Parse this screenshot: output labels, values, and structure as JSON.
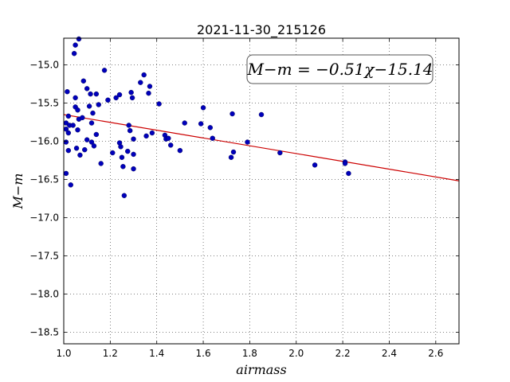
{
  "chart_data": {
    "type": "scatter",
    "title": "2021-11-30_215126",
    "xlabel": "airmass",
    "ylabel": "M−m",
    "xlim": [
      1.0,
      2.7
    ],
    "ylim": [
      -18.65,
      -14.65
    ],
    "xticks": [
      1.0,
      1.2,
      1.4,
      1.6,
      1.8,
      2.0,
      2.2,
      2.4,
      2.6
    ],
    "xtick_labels": [
      "1.0",
      "1.2",
      "1.4",
      "1.6",
      "1.8",
      "2.0",
      "2.2",
      "2.4",
      "2.6"
    ],
    "yticks": [
      -15.0,
      -15.5,
      -16.0,
      -16.5,
      -17.0,
      -17.5,
      -18.0,
      -18.5
    ],
    "ytick_labels": [
      "−15.0",
      "−15.5",
      "−16.0",
      "−16.5",
      "−17.0",
      "−17.5",
      "−18.0",
      "−18.5"
    ],
    "grid": true,
    "annotation": "M−m = −0.51χ−15.14",
    "fit": {
      "slope": -0.51,
      "intercept": -15.14,
      "color": "#cc0000"
    },
    "point_color": "#0000bb",
    "points": [
      [
        1.01,
        -16.42
      ],
      [
        1.01,
        -16.01
      ],
      [
        1.01,
        -15.84
      ],
      [
        1.01,
        -15.76
      ],
      [
        1.015,
        -15.35
      ],
      [
        1.02,
        -15.67
      ],
      [
        1.02,
        -15.89
      ],
      [
        1.02,
        -16.12
      ],
      [
        1.025,
        -15.79
      ],
      [
        1.03,
        -16.57
      ],
      [
        1.04,
        -15.79
      ],
      [
        1.045,
        -14.85
      ],
      [
        1.05,
        -14.74
      ],
      [
        1.05,
        -15.55
      ],
      [
        1.05,
        -15.43
      ],
      [
        1.055,
        -16.09
      ],
      [
        1.06,
        -15.59
      ],
      [
        1.06,
        -15.85
      ],
      [
        1.065,
        -14.66
      ],
      [
        1.065,
        -15.71
      ],
      [
        1.07,
        -16.18
      ],
      [
        1.08,
        -15.69
      ],
      [
        1.085,
        -15.21
      ],
      [
        1.09,
        -16.11
      ],
      [
        1.1,
        -15.31
      ],
      [
        1.1,
        -15.98
      ],
      [
        1.11,
        -15.54
      ],
      [
        1.115,
        -15.38
      ],
      [
        1.12,
        -16.01
      ],
      [
        1.12,
        -15.76
      ],
      [
        1.125,
        -15.63
      ],
      [
        1.13,
        -16.06
      ],
      [
        1.14,
        -15.91
      ],
      [
        1.14,
        -15.38
      ],
      [
        1.15,
        -15.52
      ],
      [
        1.16,
        -16.29
      ],
      [
        1.175,
        -15.07
      ],
      [
        1.19,
        -15.46
      ],
      [
        1.21,
        -16.15
      ],
      [
        1.225,
        -15.43
      ],
      [
        1.24,
        -15.39
      ],
      [
        1.24,
        -16.02
      ],
      [
        1.245,
        -16.07
      ],
      [
        1.25,
        -16.21
      ],
      [
        1.255,
        -16.33
      ],
      [
        1.26,
        -16.71
      ],
      [
        1.275,
        -16.13
      ],
      [
        1.28,
        -15.79
      ],
      [
        1.285,
        -15.86
      ],
      [
        1.29,
        -15.36
      ],
      [
        1.295,
        -15.43
      ],
      [
        1.3,
        -16.17
      ],
      [
        1.3,
        -16.36
      ],
      [
        1.3,
        -15.97
      ],
      [
        1.33,
        -15.23
      ],
      [
        1.345,
        -15.13
      ],
      [
        1.355,
        -15.93
      ],
      [
        1.365,
        -15.37
      ],
      [
        1.37,
        -15.28
      ],
      [
        1.38,
        -15.89
      ],
      [
        1.41,
        -15.51
      ],
      [
        1.435,
        -15.92
      ],
      [
        1.44,
        -15.97
      ],
      [
        1.45,
        -15.96
      ],
      [
        1.46,
        -16.05
      ],
      [
        1.5,
        -16.12
      ],
      [
        1.52,
        -15.76
      ],
      [
        1.59,
        -15.77
      ],
      [
        1.6,
        -15.56
      ],
      [
        1.63,
        -15.82
      ],
      [
        1.64,
        -15.96
      ],
      [
        1.72,
        -16.21
      ],
      [
        1.725,
        -15.64
      ],
      [
        1.73,
        -16.14
      ],
      [
        1.79,
        -16.01
      ],
      [
        1.85,
        -15.65
      ],
      [
        1.93,
        -16.15
      ],
      [
        2.08,
        -16.31
      ],
      [
        2.21,
        -16.27
      ],
      [
        2.21,
        -16.29
      ],
      [
        2.225,
        -16.42
      ]
    ]
  }
}
